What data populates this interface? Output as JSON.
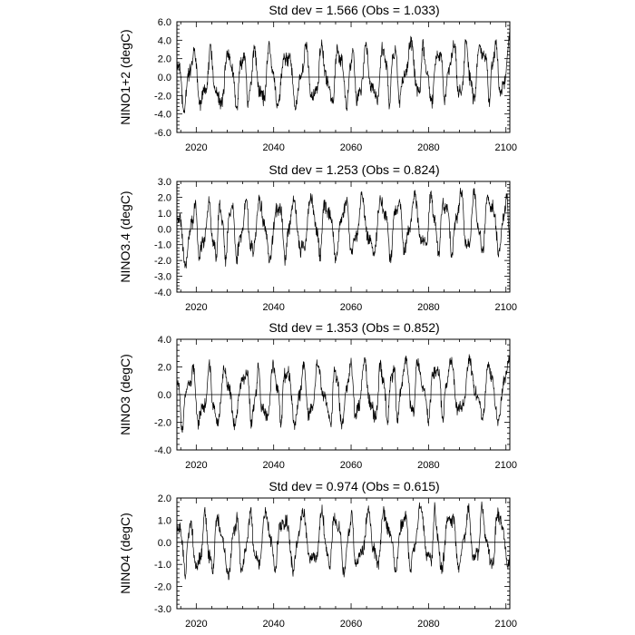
{
  "chart_data": [
    {
      "type": "line",
      "title": "Std dev = 1.566 (Obs = 1.033)",
      "ylabel": "NINO1+2 (degC)",
      "xlim": [
        2015,
        2101
      ],
      "ylim": [
        -6.0,
        6.0
      ],
      "yticks": [
        -6.0,
        -4.0,
        -2.0,
        0.0,
        2.0,
        4.0,
        6.0
      ],
      "ytick_labels": [
        "-6.0",
        "-4.0",
        "-2.0",
        "0.0",
        "2.0",
        "4.0",
        "6.0"
      ],
      "xticks": [
        2020,
        2040,
        2060,
        2080,
        2100
      ],
      "xtick_labels": [
        "2020",
        "2040",
        "2060",
        "2080",
        "2100"
      ],
      "seed": 11,
      "series": [
        {
          "values": []
        }
      ]
    },
    {
      "type": "line",
      "title": "Std dev = 1.253 (Obs = 0.824)",
      "ylabel": "NINO3.4 (degC)",
      "xlim": [
        2015,
        2101
      ],
      "ylim": [
        -4.0,
        3.0
      ],
      "yticks": [
        -4.0,
        -3.0,
        -2.0,
        -1.0,
        0.0,
        1.0,
        2.0,
        3.0
      ],
      "ytick_labels": [
        "-4.0",
        "-3.0",
        "-2.0",
        "-1.0",
        "0.0",
        "1.0",
        "2.0",
        "3.0"
      ],
      "xticks": [
        2020,
        2040,
        2060,
        2080,
        2100
      ],
      "xtick_labels": [
        "2020",
        "2040",
        "2060",
        "2080",
        "2100"
      ],
      "seed": 23,
      "series": [
        {
          "values": []
        }
      ]
    },
    {
      "type": "line",
      "title": "Std dev = 1.353 (Obs = 0.852)",
      "ylabel": "NINO3 (degC)",
      "xlim": [
        2015,
        2101
      ],
      "ylim": [
        -4.0,
        4.0
      ],
      "yticks": [
        -4.0,
        -2.0,
        0.0,
        2.0,
        4.0
      ],
      "ytick_labels": [
        "-4.0",
        "-2.0",
        "0.0",
        "2.0",
        "4.0"
      ],
      "xticks": [
        2020,
        2040,
        2060,
        2080,
        2100
      ],
      "xtick_labels": [
        "2020",
        "2040",
        "2060",
        "2080",
        "2100"
      ],
      "seed": 37,
      "series": [
        {
          "values": []
        }
      ]
    },
    {
      "type": "line",
      "title": "Std dev = 0.974 (Obs = 0.615)",
      "ylabel": "NINO4 (degC)",
      "xlim": [
        2015,
        2101
      ],
      "ylim": [
        -3.0,
        2.0
      ],
      "yticks": [
        -3.0,
        -2.0,
        -1.0,
        0.0,
        1.0,
        2.0
      ],
      "ytick_labels": [
        "-3.0",
        "-2.0",
        "-1.0",
        "0.0",
        "1.0",
        "2.0"
      ],
      "xticks": [
        2020,
        2040,
        2060,
        2080,
        2100
      ],
      "xtick_labels": [
        "2020",
        "2040",
        "2060",
        "2080",
        "2100"
      ],
      "seed": 51,
      "series": [
        {
          "values": []
        }
      ]
    }
  ]
}
